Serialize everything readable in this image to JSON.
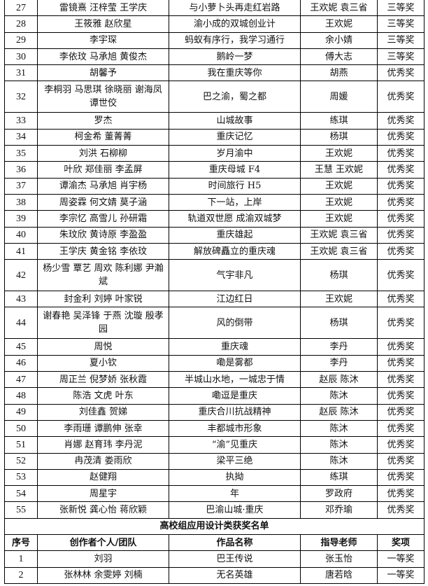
{
  "rows": [
    {
      "no": "27",
      "creators": "雷镜熹 汪梓莹 王学庆",
      "work": "与小萝卜头再走红岩路",
      "teacher": "王欢妮 袁三省",
      "award": "三等奖"
    },
    {
      "no": "28",
      "creators": "王筱雅 赵欣星",
      "work": "渝小成的双城创业计",
      "teacher": "王欢妮",
      "award": "三等奖"
    },
    {
      "no": "29",
      "creators": "李宇琛",
      "work": "蚂蚁有序行，我学习通行",
      "teacher": "余小婧",
      "award": "三等奖"
    },
    {
      "no": "30",
      "creators": "李依玟 马承旭 黄俊杰",
      "work": "鹅岭一梦",
      "teacher": "傅大志",
      "award": "三等奖"
    },
    {
      "no": "31",
      "creators": "胡馨予",
      "work": "我在重庆等你",
      "teacher": "胡燕",
      "award": "优秀奖"
    },
    {
      "no": "32",
      "creators": "李桐羽 马思琪 徐晓丽 谢海凤 谭世佼",
      "work": "巴之渝，蜀之都",
      "teacher": "周媛",
      "award": "优秀奖",
      "double": true
    },
    {
      "no": "33",
      "creators": "罗杰",
      "work": "山城故事",
      "teacher": "练琪",
      "award": "优秀奖"
    },
    {
      "no": "34",
      "creators": "柯金希 董菁菁",
      "work": "重庆记忆",
      "teacher": "杨琪",
      "award": "优秀奖"
    },
    {
      "no": "35",
      "creators": "刘洪 石柳柳",
      "work": "岁月渝中",
      "teacher": "王欢妮",
      "award": "优秀奖"
    },
    {
      "no": "36",
      "creators": "叶欣 郑佳丽 李孟屏",
      "work": "重庆母城 F4",
      "teacher": "王慧 王欢妮",
      "award": "优秀奖"
    },
    {
      "no": "37",
      "creators": "谭渝杰 马承旭 肖宇杨",
      "work": "时间旅行 H5",
      "teacher": "王欢妮",
      "award": "优秀奖"
    },
    {
      "no": "38",
      "creators": "周姿霖 何文婧 莫子涵",
      "work": "下一站，上岸",
      "teacher": "王欢妮",
      "award": "优秀奖"
    },
    {
      "no": "39",
      "creators": "李宗忆 高雪儿 孙研霜",
      "work": "轨道双世愿 成渝双城梦",
      "teacher": "王欢妮",
      "award": "优秀奖"
    },
    {
      "no": "40",
      "creators": "朱玟欣 黄诗原 李盈盈",
      "work": "重庆雄起",
      "teacher": "王欢妮 袁三省",
      "award": "优秀奖"
    },
    {
      "no": "41",
      "creators": "王学庆 黄金铭 李依玟",
      "work": "解放碑矗立的重庆魂",
      "teacher": "王欢妮 袁三省",
      "award": "优秀奖"
    },
    {
      "no": "42",
      "creators": "杨少雪 覃艺 周欢 陈利娜 尹瀚斌",
      "work": "气宇非凡",
      "teacher": "杨琪",
      "award": "优秀奖",
      "double": true
    },
    {
      "no": "43",
      "creators": "封金利 刘婷 叶家锐",
      "work": "江边红日",
      "teacher": "王欢妮",
      "award": "优秀奖"
    },
    {
      "no": "44",
      "creators": "谢春艳 吴泽锋 于燕 沈璇 殷孝园",
      "work": "风的倒带",
      "teacher": "杨琪",
      "award": "优秀奖",
      "double": true
    },
    {
      "no": "45",
      "creators": "周悦",
      "work": "重庆魂",
      "teacher": "李丹",
      "award": "优秀奖"
    },
    {
      "no": "46",
      "creators": "夏小钦",
      "work": "嘞是雾都",
      "teacher": "李丹",
      "award": "优秀奖"
    },
    {
      "no": "47",
      "creators": "周正兰 倪梦娇 张秋霞",
      "work": "半城山水地，一城忠于情",
      "teacher": "赵辰 陈沐",
      "award": "优秀奖"
    },
    {
      "no": "48",
      "creators": "陈浩 文虎 叶东",
      "work": "嘞逗是重庆",
      "teacher": "陈沐",
      "award": "优秀奖"
    },
    {
      "no": "49",
      "creators": "刘佳鑫 贺娣",
      "work": "重庆合川抗战精神",
      "teacher": "赵辰 陈沐",
      "award": "优秀奖"
    },
    {
      "no": "50",
      "creators": "李雨珊 谭鹏伸 张幸",
      "work": "丰都城市形象",
      "teacher": "陈沐",
      "award": "优秀奖"
    },
    {
      "no": "51",
      "creators": "肖娜 赵育玮 李丹泥",
      "work": "“渝”见重庆",
      "teacher": "陈沐",
      "award": "优秀奖"
    },
    {
      "no": "52",
      "creators": "冉茂清 娄雨欣",
      "work": "梁平三绝",
      "teacher": "陈沐",
      "award": "优秀奖"
    },
    {
      "no": "53",
      "creators": "赵健翔",
      "work": "执拗",
      "teacher": "练琪",
      "award": "优秀奖"
    },
    {
      "no": "54",
      "creators": "周星宇",
      "work": "年",
      "teacher": "罗政府",
      "award": "优秀奖"
    },
    {
      "no": "55",
      "creators": "张新悦 龚心怡 蒋欣颖",
      "work": "巴渝山城·重庆",
      "teacher": "邓乔瑜",
      "award": "优秀奖"
    }
  ],
  "section_title": "高校组应用设计类获奖名单",
  "headers": {
    "no": "序号",
    "creators": "创作者个人/团队",
    "work": "作品名称",
    "teacher": "指导老师",
    "award": "奖项"
  },
  "rows2": [
    {
      "no": "1",
      "creators": "刘羽",
      "work": "巴王传说",
      "teacher": "张玉怡",
      "award": "一等奖"
    },
    {
      "no": "2",
      "creators": "张林林 余雯婷 刘楠",
      "work": "无名英雄",
      "teacher": "唐若晗",
      "award": "一等奖"
    }
  ]
}
